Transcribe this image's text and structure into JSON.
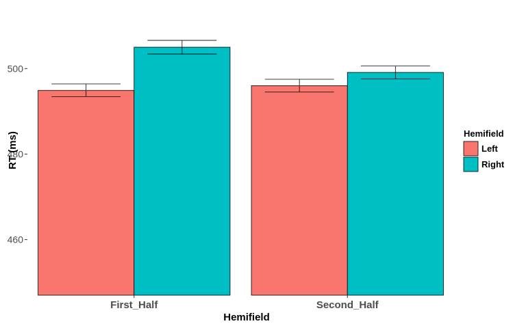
{
  "chart_data": {
    "type": "bar",
    "categories": [
      "First_Half",
      "Second_Half"
    ],
    "series": [
      {
        "name": "Left",
        "color": "#F8766D",
        "values": [
          494.9,
          496.0
        ],
        "error": [
          1.5,
          1.5
        ]
      },
      {
        "name": "Right",
        "color": "#00BFC4",
        "values": [
          505.0,
          499.1
        ],
        "error": [
          1.6,
          1.5
        ]
      }
    ],
    "xlabel": "Hemifield",
    "ylabel": "RT (ms)",
    "ylim": [
      447,
      513
    ],
    "yticks": [
      460,
      480,
      500
    ],
    "grid": false,
    "error_bars": true,
    "legend": {
      "title": "Hemifield",
      "position": "right"
    }
  }
}
